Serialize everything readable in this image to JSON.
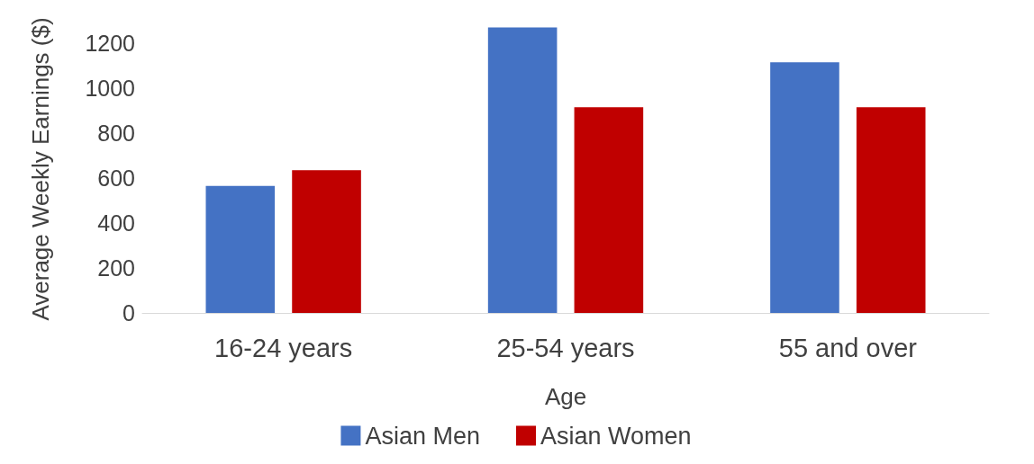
{
  "chart_data": {
    "type": "bar",
    "xlabel": "Age",
    "ylabel": "Average Weekly Earnings ($)",
    "categories": [
      "16-24 years",
      "25-54 years",
      "55 and over"
    ],
    "series": [
      {
        "name": "Asian Men",
        "color": "#4472c4",
        "values": [
          565,
          1270,
          1115
        ]
      },
      {
        "name": "Asian Women",
        "color": "#c00000",
        "values": [
          635,
          915,
          915
        ]
      }
    ],
    "ylim": [
      0,
      1280
    ],
    "yticks": [
      0,
      200,
      400,
      600,
      800,
      1000,
      1200
    ],
    "grid": false,
    "legend": "bottom"
  }
}
